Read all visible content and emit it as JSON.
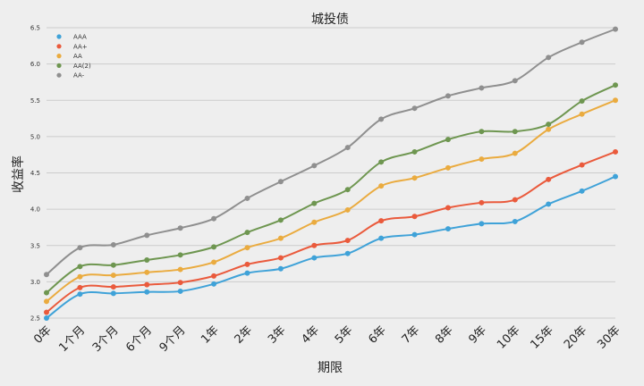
{
  "chart_data": {
    "type": "line",
    "title": "城投债",
    "xlabel": "期限",
    "ylabel": "收益率",
    "categories": [
      "0年",
      "1个月",
      "3个月",
      "6个月",
      "9个月",
      "1年",
      "2年",
      "3年",
      "4年",
      "5年",
      "6年",
      "7年",
      "8年",
      "9年",
      "10年",
      "15年",
      "20年",
      "30年"
    ],
    "ylim": [
      2.5,
      6.5
    ],
    "yticks": [
      "2.5",
      "3.0",
      "3.5",
      "4.0",
      "4.5",
      "5.0",
      "5.5",
      "6.0",
      "6.5"
    ],
    "grid": true,
    "legend_position": "top-left",
    "series": [
      {
        "name": "AAA",
        "color": "#3fa2d8",
        "values": [
          2.5,
          2.83,
          2.84,
          2.86,
          2.87,
          2.97,
          3.12,
          3.18,
          3.33,
          3.39,
          3.6,
          3.65,
          3.73,
          3.8,
          3.83,
          4.07,
          4.25,
          4.45
        ]
      },
      {
        "name": "AA+",
        "color": "#ea5a3c",
        "values": [
          2.58,
          2.92,
          2.93,
          2.96,
          2.99,
          3.08,
          3.24,
          3.33,
          3.5,
          3.57,
          3.84,
          3.9,
          4.02,
          4.09,
          4.13,
          4.41,
          4.61,
          4.79
        ]
      },
      {
        "name": "AA",
        "color": "#eaab3f",
        "values": [
          2.73,
          3.07,
          3.09,
          3.13,
          3.17,
          3.27,
          3.47,
          3.6,
          3.82,
          3.99,
          4.32,
          4.43,
          4.57,
          4.69,
          4.77,
          5.1,
          5.31,
          5.5
        ]
      },
      {
        "name": "AA(2)",
        "color": "#6e9650",
        "values": [
          2.85,
          3.21,
          3.23,
          3.3,
          3.37,
          3.48,
          3.68,
          3.85,
          4.08,
          4.27,
          4.65,
          4.79,
          4.96,
          5.07,
          5.07,
          5.17,
          5.49,
          5.71
        ]
      },
      {
        "name": "AA-",
        "color": "#8f8f8f",
        "values": [
          3.1,
          3.47,
          3.51,
          3.64,
          3.74,
          3.87,
          4.15,
          4.38,
          4.6,
          4.85,
          5.24,
          5.39,
          5.56,
          5.67,
          5.77,
          6.09,
          6.3,
          6.48
        ]
      }
    ]
  }
}
